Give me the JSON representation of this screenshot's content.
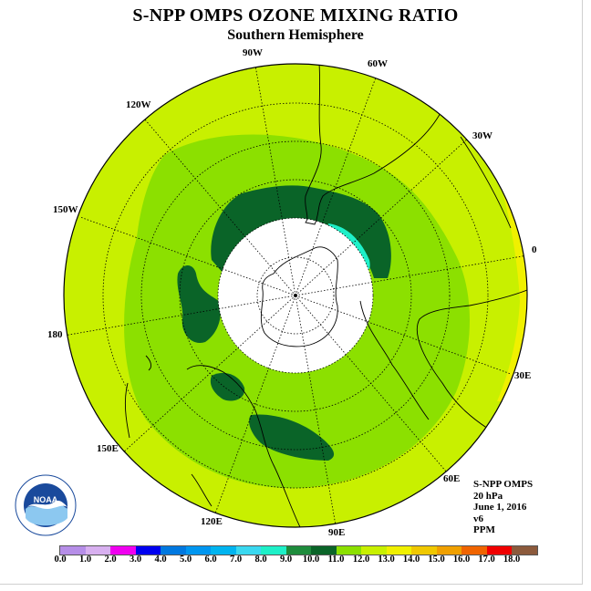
{
  "title": "S-NPP OMPS OZONE MIXING RATIO",
  "subtitle": "Southern Hemisphere",
  "longitude_labels": {
    "w90": "90W",
    "w60": "60W",
    "w30": "30W",
    "e0": "0",
    "e30": "30E",
    "e60": "60E",
    "e90": "90E",
    "e120": "120E",
    "e150": "150E",
    "l180": "180",
    "w150": "150W",
    "w120": "120W"
  },
  "info": {
    "instrument": "S-NPP OMPS",
    "level": "20 hPa",
    "date": "June 1, 2016",
    "version": "v6",
    "units": "PPM"
  },
  "logo": {
    "text": "NOAA",
    "icon": "noaa-logo"
  },
  "colorbar": {
    "ticks": [
      "0.0",
      "1.0",
      "2.0",
      "3.0",
      "4.0",
      "5.0",
      "6.0",
      "7.0",
      "8.0",
      "9.0",
      "10.0",
      "11.0",
      "12.0",
      "13.0",
      "14.0",
      "15.0",
      "16.0",
      "17.0",
      "18.0"
    ],
    "colors": [
      "#b68ee8",
      "#d8b0f0",
      "#f000f0",
      "#0000f0",
      "#0078e0",
      "#0096f0",
      "#00b4f0",
      "#3ad8f0",
      "#1ef0c8",
      "#1e8c3c",
      "#0a6428",
      "#8ce000",
      "#c8f000",
      "#f0f000",
      "#f0c800",
      "#f0a000",
      "#f06400",
      "#f00000",
      "#8c5a3c"
    ]
  },
  "map_colors": {
    "ocean_background": "#c8f000",
    "band_11": "#8ce000",
    "band_10": "#0a6428",
    "band_8": "#1ef0c8",
    "band_13": "#f0f000",
    "polar_night": "#ffffff"
  }
}
